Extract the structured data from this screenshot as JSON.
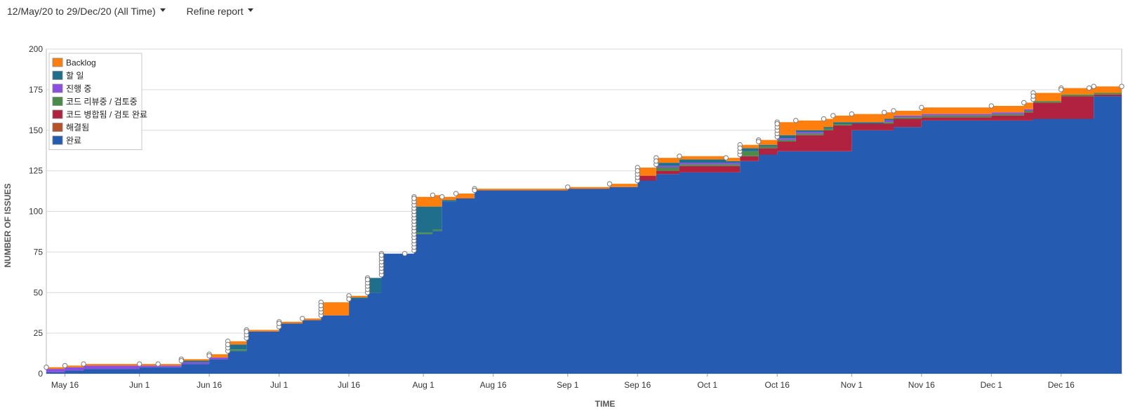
{
  "toolbar": {
    "date_range_label": "12/May/20 to 29/Dec/20 (All Time)",
    "refine_label": "Refine report"
  },
  "colors": {
    "Backlog": "#ff7f0e",
    "할 일": "#1f6e8c",
    "진행 중": "#8b4fe0",
    "코드 리뷰중 / 검토중": "#4a8a4a",
    "코드 병합됨 / 검토 완료": "#b0223f",
    "해결됨": "#b5522a",
    "완료": "#255bb0"
  },
  "chart_data": {
    "type": "area",
    "stacked": true,
    "xlabel": "TIME",
    "ylabel": "NUMBER OF ISSUES",
    "ylim": [
      0,
      200
    ],
    "y_ticks": [
      0,
      25,
      50,
      75,
      100,
      125,
      150,
      175,
      200
    ],
    "xlim": [
      "2020-05-12",
      "2020-12-29"
    ],
    "x_ticks": [
      {
        "date": "2020-05-16",
        "label": "May 16"
      },
      {
        "date": "2020-06-01",
        "label": "Jun 1"
      },
      {
        "date": "2020-06-16",
        "label": "Jun 16"
      },
      {
        "date": "2020-07-01",
        "label": "Jul 1"
      },
      {
        "date": "2020-07-16",
        "label": "Jul 16"
      },
      {
        "date": "2020-08-01",
        "label": "Aug 1"
      },
      {
        "date": "2020-08-16",
        "label": "Aug 16"
      },
      {
        "date": "2020-09-01",
        "label": "Sep 1"
      },
      {
        "date": "2020-09-16",
        "label": "Sep 16"
      },
      {
        "date": "2020-10-01",
        "label": "Oct 1"
      },
      {
        "date": "2020-10-16",
        "label": "Oct 16"
      },
      {
        "date": "2020-11-01",
        "label": "Nov 1"
      },
      {
        "date": "2020-11-16",
        "label": "Nov 16"
      },
      {
        "date": "2020-12-01",
        "label": "Dec 1"
      },
      {
        "date": "2020-12-16",
        "label": "Dec 16"
      }
    ],
    "grid": true,
    "legend_position": "top-left",
    "legend_order": [
      "Backlog",
      "할 일",
      "진행 중",
      "코드 리뷰중 / 검토중",
      "코드 병합됨 / 검토 완료",
      "해결됨",
      "완료"
    ],
    "stack_order": [
      "완료",
      "해결됨",
      "코드 병합됨 / 검토 완료",
      "코드 리뷰중 / 검토중",
      "진행 중",
      "할 일",
      "Backlog"
    ],
    "x": [
      "2020-05-12",
      "2020-05-16",
      "2020-05-20",
      "2020-06-01",
      "2020-06-05",
      "2020-06-10",
      "2020-06-16",
      "2020-06-20",
      "2020-06-24",
      "2020-07-01",
      "2020-07-06",
      "2020-07-10",
      "2020-07-16",
      "2020-07-20",
      "2020-07-23",
      "2020-07-28",
      "2020-07-30",
      "2020-08-03",
      "2020-08-05",
      "2020-08-08",
      "2020-08-12",
      "2020-09-01",
      "2020-09-10",
      "2020-09-16",
      "2020-09-20",
      "2020-09-25",
      "2020-10-05",
      "2020-10-08",
      "2020-10-12",
      "2020-10-16",
      "2020-10-20",
      "2020-10-26",
      "2020-10-28",
      "2020-11-01",
      "2020-11-08",
      "2020-11-10",
      "2020-11-16",
      "2020-12-01",
      "2020-12-08",
      "2020-12-10",
      "2020-12-16",
      "2020-12-22",
      "2020-12-23",
      "2020-12-29"
    ],
    "series": [
      {
        "name": "완료",
        "values": [
          1,
          2,
          3,
          4,
          4,
          6,
          9,
          14,
          26,
          31,
          33,
          36,
          46,
          50,
          74,
          74,
          86,
          88,
          106,
          108,
          113,
          114,
          115,
          119,
          123,
          124,
          124,
          131,
          135,
          137,
          137,
          137,
          137,
          150,
          150,
          152,
          156,
          156,
          156,
          157,
          157,
          157,
          171,
          171
        ]
      },
      {
        "name": "해결됨",
        "values": [
          0,
          0,
          0,
          0,
          0,
          0,
          0,
          0,
          0,
          0,
          0,
          0,
          0,
          0,
          0,
          0,
          0,
          0,
          0,
          0,
          0,
          0,
          0,
          0,
          0,
          0,
          0,
          0,
          0,
          0,
          0,
          0,
          0,
          0,
          0,
          0,
          0,
          0,
          0,
          0,
          0,
          0,
          0,
          0
        ]
      },
      {
        "name": "코드 병합됨 / 검토 완료",
        "values": [
          0,
          0,
          0,
          0,
          0,
          0,
          0,
          0,
          0,
          0,
          0,
          0,
          0,
          0,
          0,
          0,
          0,
          0,
          0,
          0,
          0,
          0,
          0,
          3,
          2,
          4,
          4,
          3,
          4,
          6,
          10,
          13,
          16,
          4,
          4,
          5,
          2,
          3,
          5,
          10,
          14,
          14,
          1,
          1
        ]
      },
      {
        "name": "코드 리뷰중 / 검토중",
        "values": [
          0,
          0,
          0,
          0,
          0,
          0,
          0,
          1,
          0,
          0,
          0,
          0,
          0,
          0,
          0,
          0,
          1,
          1,
          0,
          0,
          0,
          0,
          0,
          0,
          2,
          1,
          1,
          3,
          1,
          1,
          1,
          1,
          1,
          0,
          1,
          1,
          1,
          1,
          1,
          1,
          1,
          1,
          1,
          1
        ]
      },
      {
        "name": "진행 중",
        "values": [
          2,
          2,
          2,
          1,
          1,
          1,
          1,
          0,
          0,
          0,
          0,
          0,
          0,
          0,
          0,
          0,
          0,
          0,
          0,
          0,
          0,
          0,
          0,
          0,
          1,
          1,
          1,
          0,
          0,
          1,
          1,
          0,
          0,
          0,
          1,
          1,
          1,
          1,
          1,
          0,
          0,
          0,
          0,
          0
        ]
      },
      {
        "name": "할 일",
        "values": [
          0,
          0,
          0,
          0,
          0,
          1,
          0,
          3,
          0,
          0,
          0,
          0,
          1,
          9,
          0,
          0,
          16,
          14,
          1,
          0,
          0,
          0,
          0,
          0,
          2,
          2,
          1,
          2,
          1,
          2,
          1,
          1,
          1,
          1,
          1,
          0,
          0,
          0,
          0,
          0,
          0,
          0,
          0,
          0
        ]
      },
      {
        "name": "Backlog",
        "values": [
          1,
          1,
          1,
          1,
          1,
          1,
          2,
          2,
          1,
          1,
          1,
          8,
          1,
          0,
          0,
          0,
          6,
          7,
          2,
          3,
          1,
          1,
          2,
          5,
          3,
          2,
          2,
          2,
          3,
          8,
          6,
          5,
          4,
          5,
          4,
          3,
          4,
          4,
          4,
          5,
          4,
          4,
          4,
          4
        ]
      }
    ]
  }
}
